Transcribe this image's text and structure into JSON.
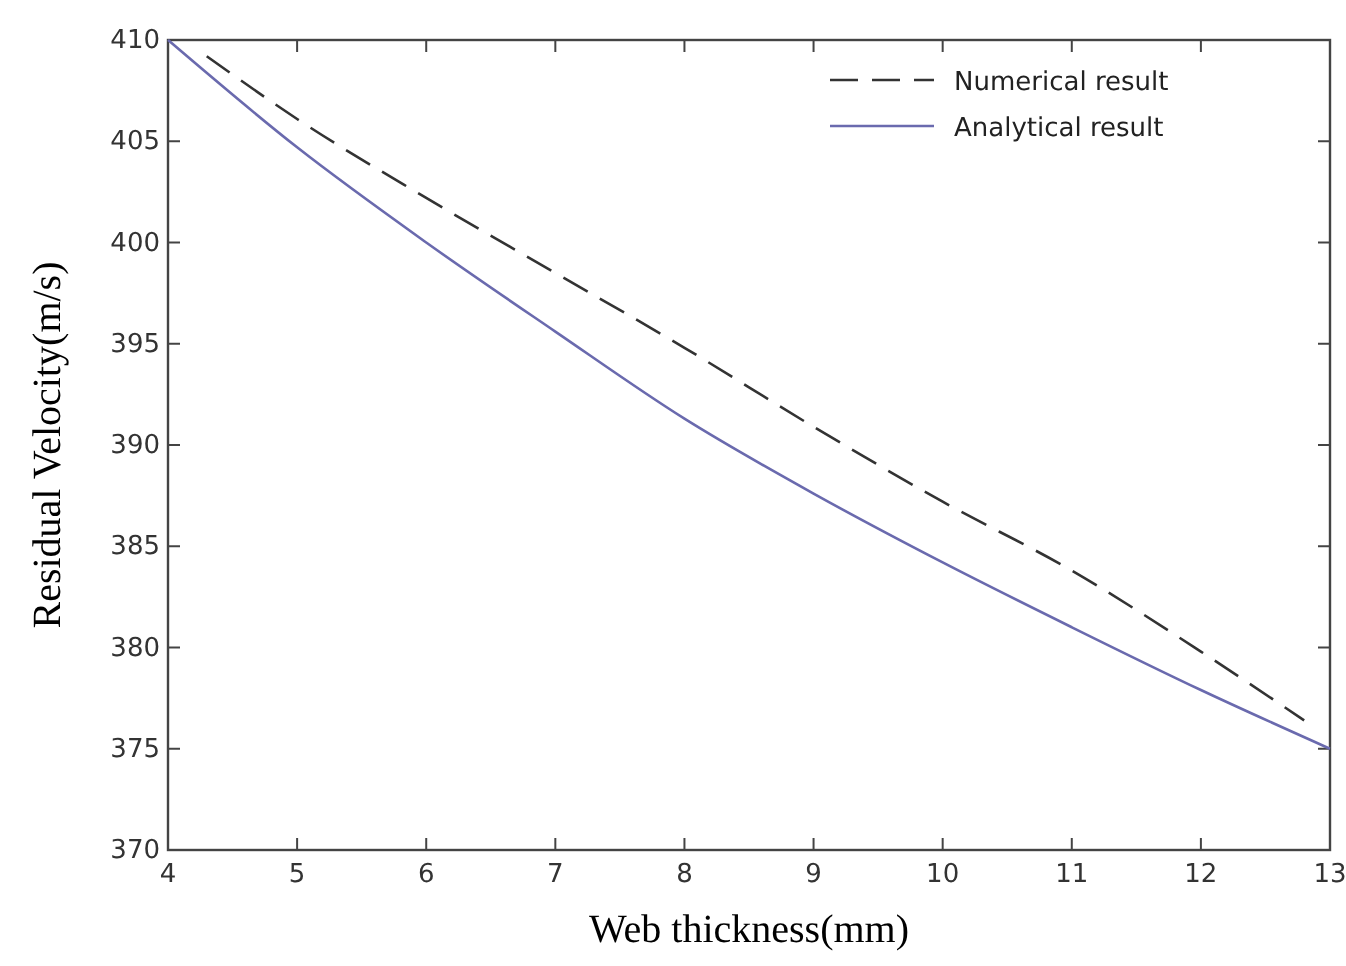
{
  "chart_data": {
    "type": "line",
    "xlabel": "Web thickness(mm)",
    "ylabel": "Residual Velocity(m/s)",
    "xlim": [
      4,
      13
    ],
    "xticks": [
      4,
      5,
      6,
      7,
      8,
      9,
      10,
      11,
      12,
      13
    ],
    "ylim": [
      370,
      410
    ],
    "yticks": [
      370,
      375,
      380,
      385,
      390,
      395,
      400,
      405,
      410
    ],
    "legend": "top right",
    "grid": false,
    "series": [
      {
        "name": "Numerical result",
        "color": "#333333",
        "line_style": "dashed",
        "x": [
          4.3,
          5,
          6,
          7,
          8,
          9,
          10,
          11,
          12,
          12.8
        ],
        "values": [
          409.2,
          406.1,
          402.2,
          398.5,
          394.8,
          390.9,
          387.2,
          383.8,
          379.8,
          376.4
        ]
      },
      {
        "name": "Analytical result",
        "color": "#6a6aae",
        "line_style": "solid",
        "x": [
          4,
          5,
          6,
          7,
          8,
          9,
          10,
          11,
          12,
          13
        ],
        "values": [
          410,
          404.7,
          400,
          395.6,
          391.3,
          387.6,
          384.2,
          381,
          377.9,
          375
        ]
      }
    ]
  }
}
